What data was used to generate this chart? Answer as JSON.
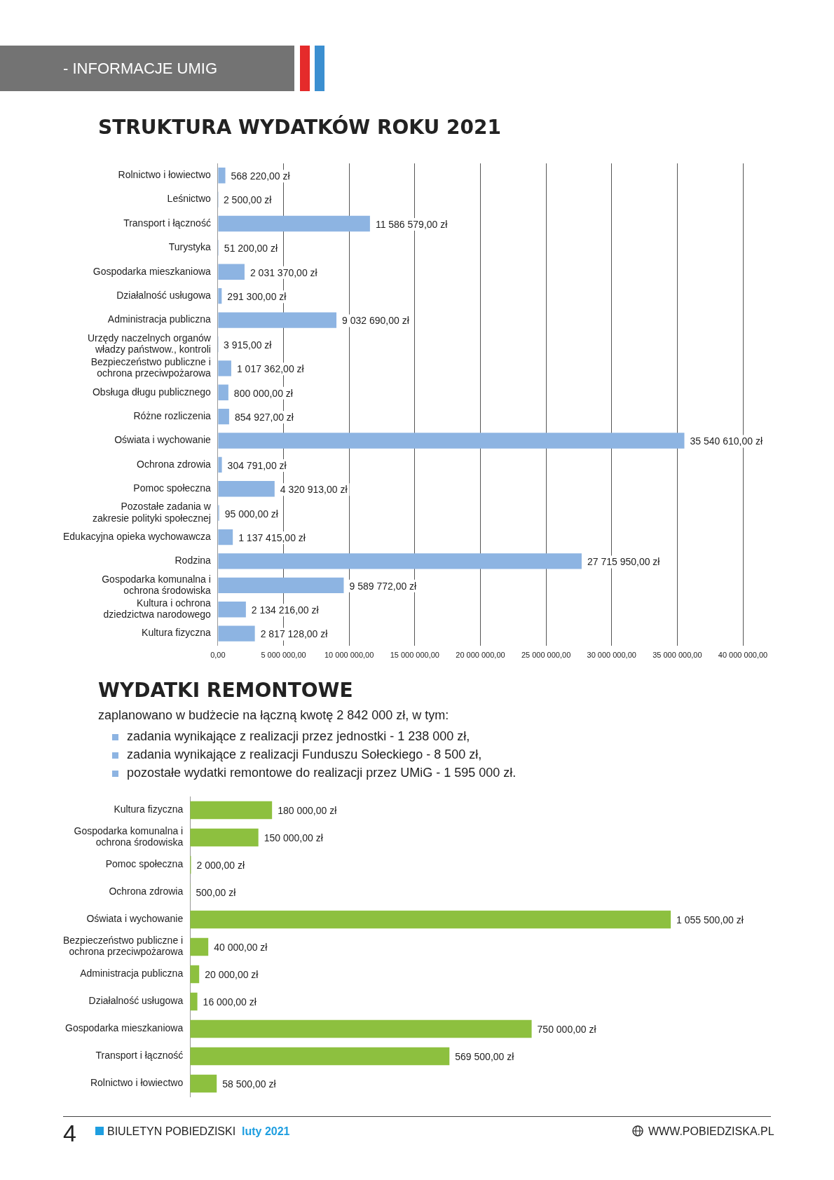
{
  "chart_data": [
    {
      "type": "bar",
      "title": "STRUKTURA WYDATKÓW ROKU 2021",
      "orientation": "horizontal",
      "color": "#8db4e2",
      "grid": "x",
      "categories": [
        "Rolnictwo i łowiectwo",
        "Leśnictwo",
        "Transport i łączność",
        "Turystyka",
        "Gospodarka mieszkaniowa",
        "Działalność usługowa",
        "Administracja publiczna",
        "Urzędy naczelnych organów władzy państwow., kontroli",
        "Bezpieczeństwo publiczne i ochrona przeciwpożarowa",
        "Obsługa długu publicznego",
        "Różne rozliczenia",
        "Oświata i wychowanie",
        "Ochrona zdrowia",
        "Pomoc społeczna",
        "Pozostałe zadania w zakresie polityki społecznej",
        "Edukacyjna opieka wychowawcza",
        "Rodzina",
        "Gospodarka komunalna i ochrona środowiska",
        "Kultura i ochrona dziedzictwa narodowego",
        "Kultura fizyczna"
      ],
      "values": [
        568220,
        2500,
        11586579,
        51200,
        2031370,
        291300,
        9032690,
        3915,
        1017362,
        800000,
        854927,
        35540610,
        304791,
        4320913,
        95000,
        1137415,
        27715950,
        9589772,
        2134216,
        2817128
      ],
      "value_labels": [
        "568 220,00 zł",
        "2 500,00 zł",
        "11 586 579,00 zł",
        "51 200,00 zł",
        "2 031 370,00 zł",
        "291 300,00 zł",
        "9 032 690,00 zł",
        "3 915,00 zł",
        "1 017 362,00 zł",
        "800 000,00 zł",
        "854 927,00 zł",
        "35 540 610,00 zł",
        "304 791,00 zł",
        "4 320 913,00 zł",
        "95 000,00 zł",
        "1 137 415,00 zł",
        "27 715 950,00 zł",
        "9 589 772,00 zł",
        "2 134 216,00 zł",
        "2 817 128,00 zł"
      ],
      "xlim": [
        0,
        40000000
      ],
      "xticks": [
        {
          "value": 0,
          "label": "0,00"
        },
        {
          "value": 5000000,
          "label": "5 000 000,00"
        },
        {
          "value": 10000000,
          "label": "10 000 000,00"
        },
        {
          "value": 15000000,
          "label": "15 000 000,00"
        },
        {
          "value": 20000000,
          "label": "20 000 000,00"
        },
        {
          "value": 25000000,
          "label": "25 000 000,00"
        },
        {
          "value": 30000000,
          "label": "30 000 000,00"
        },
        {
          "value": 35000000,
          "label": "35 000 000,00"
        },
        {
          "value": 40000000,
          "label": "40 000 000,00"
        }
      ],
      "annotations": [
        "- INFORMACJE UMIG"
      ]
    },
    {
      "type": "bar",
      "title": "WYDATKI REMONTOWE",
      "subtitle": "zaplanowano w budżecie na łączną kwotę 2 842 000 zł, w tym:",
      "orientation": "horizontal",
      "color": "#8dc03f",
      "tick_labels": "y",
      "categories": [
        "Kultura fizyczna",
        "Gospodarka komunalna i ochrona środowiska",
        "Pomoc społeczna",
        "Ochrona zdrowia",
        "Oświata i wychowanie",
        "Bezpieczeństwo publiczne i ochrona przeciwpożarowa",
        "Administracja publiczna",
        "Działalność usługowa",
        "Gospodarka mieszkaniowa",
        "Transport i łączność",
        "Rolnictwo i łowiectwo"
      ],
      "values": [
        180000,
        150000,
        2000,
        500,
        1055500,
        40000,
        20000,
        16000,
        750000,
        569500,
        58500
      ],
      "value_labels": [
        "180 000,00 zł",
        "150 000,00 zł",
        "2 000,00 zł",
        "500,00 zł",
        "1 055 500,00 zł",
        "40 000,00 zł",
        "20 000,00 zł",
        "16 000,00 zł",
        "750 000,00 zł",
        "569 500,00 zł",
        "58 500,00 zł"
      ],
      "annotations": [
        "zadania wynikające z realizacji  przez jednostki - 1 238 000 zł,",
        "zadania wynikające z realizacji Funduszu Sołeckiego - 8 500 zł,",
        "pozostałe wydatki remontowe do realizacji przez UMiG - 1 595 000 zł.",
        "4",
        "BIULETYN POBIEDZISKI",
        "luty 2021",
        "WWW.POBIEDZISKA.PL"
      ]
    }
  ]
}
